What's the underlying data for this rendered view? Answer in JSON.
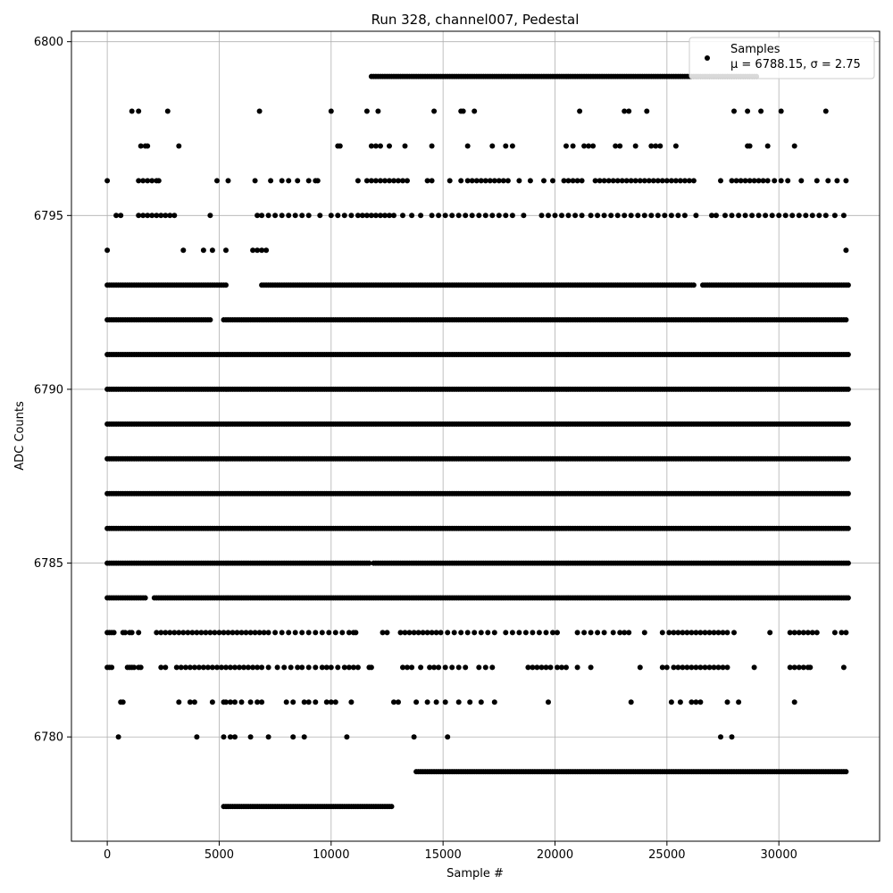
{
  "chart_data": {
    "type": "scatter",
    "title": "Run 328, channel007, Pedestal",
    "xlabel": "Sample #",
    "ylabel": "ADC Counts",
    "xlim": [
      -1600,
      34500
    ],
    "ylim": [
      6777,
      6800.3
    ],
    "xticks": [
      0,
      5000,
      10000,
      15000,
      20000,
      25000,
      30000
    ],
    "yticks": [
      6780,
      6785,
      6790,
      6795,
      6800
    ],
    "grid": true,
    "legend_position": "top-right",
    "series": [
      {
        "name": "Samples",
        "color": "#000000",
        "marker": "dot",
        "legend_label": "μ = 6788.15, σ = 2.75",
        "bands": [
          {
            "y": 6778,
            "x": [
              5200,
              12700
            ]
          },
          {
            "y": 6779,
            "x": [
              13800,
              33000
            ]
          },
          {
            "y": 6780,
            "x": [
              500,
              4000,
              5200,
              5500,
              5700,
              6400,
              7200,
              8300,
              8800,
              10700,
              13700,
              15200,
              27400,
              27900
            ]
          },
          {
            "y": 6781,
            "x": [
              600,
              700,
              3200,
              3700,
              3900,
              4700,
              5200,
              5300,
              5500,
              5700,
              6000,
              6400,
              6700,
              6900,
              8000,
              8300,
              8800,
              9000,
              9300,
              9800,
              10000,
              10200,
              10900,
              12800,
              13000,
              13800,
              14300,
              14700,
              15100,
              15700,
              16200,
              16700,
              17300,
              19700,
              23400,
              25200,
              25600,
              26100,
              26300,
              26500,
              27700,
              28200,
              30700
            ]
          },
          {
            "y": 6782,
            "x": [
              0,
              100,
              200,
              900,
              1000,
              1100,
              1200,
              1400,
              1500,
              2400,
              2600,
              3100,
              3300,
              3500,
              3700,
              3900,
              4100,
              4300,
              4500,
              4700,
              4900,
              5100,
              5300,
              5500,
              5700,
              5900,
              6100,
              6300,
              6500,
              6700,
              6900,
              7200,
              7600,
              7900,
              8200,
              8500,
              8700,
              9000,
              9300,
              9600,
              9800,
              10000,
              10300,
              10600,
              10800,
              11000,
              11200,
              11700,
              11800,
              13200,
              13400,
              13600,
              14000,
              14400,
              14600,
              14800,
              15100,
              15400,
              15700,
              16000,
              16600,
              16900,
              17200,
              18800,
              19000,
              19200,
              19400,
              19600,
              19800,
              20100,
              20300,
              20500,
              21000,
              21600,
              23800,
              24800,
              25000,
              25300,
              25500,
              25700,
              25900,
              26100,
              26300,
              26500,
              26700,
              26900,
              27100,
              27300,
              27500,
              27700,
              28900,
              30500,
              30700,
              30900,
              31100,
              31300,
              31400,
              32900
            ]
          },
          {
            "y": 6783,
            "x": [
              0,
              100,
              200,
              300,
              700,
              800,
              1000,
              1100,
              1400,
              2200,
              2400,
              2600,
              2800,
              3000,
              3200,
              3400,
              3600,
              3800,
              4000,
              4200,
              4400,
              4600,
              4800,
              5000,
              5200,
              5400,
              5600,
              5800,
              6000,
              6200,
              6400,
              6600,
              6800,
              7000,
              7200,
              7500,
              7800,
              8100,
              8400,
              8700,
              9000,
              9300,
              9600,
              9900,
              10200,
              10500,
              10800,
              11000,
              11100,
              12300,
              12500,
              13100,
              13300,
              13500,
              13700,
              13900,
              14100,
              14300,
              14500,
              14700,
              14900,
              15200,
              15500,
              15800,
              16100,
              16400,
              16700,
              17000,
              17300,
              17800,
              18100,
              18400,
              18700,
              19000,
              19300,
              19600,
              19900,
              20100,
              21000,
              21300,
              21600,
              21900,
              22200,
              22600,
              22900,
              23100,
              23300,
              24000,
              24800,
              25100,
              25300,
              25500,
              25700,
              25900,
              26100,
              26300,
              26500,
              26700,
              26900,
              27100,
              27300,
              27500,
              27700,
              28000,
              29600,
              30500,
              30700,
              30900,
              31100,
              31300,
              31500,
              31700,
              32500,
              32800,
              33000
            ]
          },
          {
            "y": 6784,
            "x": [
              0,
              1700,
              2100,
              33100
            ]
          },
          {
            "y": 6785,
            "x": [
              0,
              11700,
              11900,
              33100
            ]
          },
          {
            "y": 6786,
            "x": [
              0,
              33100
            ]
          },
          {
            "y": 6787,
            "x": [
              0,
              33100
            ]
          },
          {
            "y": 6788,
            "x": [
              0,
              33100
            ]
          },
          {
            "y": 6789,
            "x": [
              0,
              33100
            ]
          },
          {
            "y": 6790,
            "x": [
              0,
              33100
            ]
          },
          {
            "y": 6791,
            "x": [
              0,
              33100
            ]
          },
          {
            "y": 6792,
            "x": [
              0,
              4600,
              5200,
              33000
            ]
          },
          {
            "y": 6793,
            "x": [
              0,
              5300,
              6900,
              26200,
              26600,
              33100
            ]
          },
          {
            "y": 6794,
            "x": [
              0,
              3400,
              4300,
              4700,
              5300,
              6500,
              6700,
              6900,
              7100,
              33000
            ]
          },
          {
            "y": 6795,
            "x": [
              400,
              600,
              1400,
              1600,
              1800,
              2000,
              2200,
              2400,
              2600,
              2800,
              3000,
              4600,
              6700,
              6900,
              7200,
              7500,
              7800,
              8100,
              8400,
              8700,
              9000,
              9500,
              10000,
              10300,
              10600,
              10900,
              11200,
              11400,
              11600,
              11800,
              12000,
              12200,
              12400,
              12600,
              12800,
              13200,
              13600,
              14000,
              14500,
              14800,
              15100,
              15400,
              15700,
              16000,
              16300,
              16600,
              16900,
              17200,
              17500,
              17800,
              18100,
              18600,
              19400,
              19700,
              20000,
              20300,
              20600,
              20900,
              21200,
              21600,
              21900,
              22200,
              22500,
              22800,
              23100,
              23400,
              23700,
              24000,
              24300,
              24600,
              24900,
              25200,
              25500,
              25800,
              26300,
              27000,
              27200,
              27600,
              27900,
              28200,
              28500,
              28800,
              29100,
              29400,
              29700,
              30000,
              30300,
              30600,
              30900,
              31200,
              31500,
              31800,
              32100,
              32500,
              32900
            ]
          },
          {
            "y": 6796,
            "x": [
              0,
              1400,
              1600,
              1800,
              2000,
              2200,
              2300,
              4900,
              5400,
              6600,
              7300,
              7800,
              8100,
              8500,
              9000,
              9300,
              9400,
              11200,
              11600,
              11800,
              12000,
              12200,
              12400,
              12600,
              12800,
              13000,
              13200,
              13400,
              14300,
              14500,
              15300,
              15800,
              16100,
              16300,
              16500,
              16700,
              16900,
              17100,
              17300,
              17500,
              17700,
              17900,
              18400,
              18900,
              19500,
              19900,
              20400,
              20600,
              20800,
              21000,
              21200,
              21800,
              22000,
              22200,
              22400,
              22600,
              22800,
              23000,
              23200,
              23400,
              23600,
              23800,
              24000,
              24200,
              24400,
              24600,
              24800,
              25000,
              25200,
              25400,
              25600,
              25800,
              26000,
              26200,
              27400,
              27900,
              28100,
              28300,
              28500,
              28700,
              28900,
              29100,
              29300,
              29500,
              29800,
              30100,
              30400,
              31000,
              31700,
              32200,
              32600,
              33000
            ]
          },
          {
            "y": 6797,
            "x": [
              1500,
              1700,
              1800,
              3200,
              10300,
              10400,
              11800,
              12000,
              12200,
              12600,
              13300,
              14500,
              16100,
              17200,
              17800,
              18100,
              20500,
              20800,
              21300,
              21500,
              21700,
              22700,
              22900,
              23600,
              24300,
              24500,
              24700,
              25400,
              28600,
              28700,
              29500,
              30700
            ]
          },
          {
            "y": 6798,
            "x": [
              1100,
              1400,
              2700,
              6800,
              10000,
              11600,
              12100,
              14600,
              15800,
              15900,
              16400,
              21100,
              23100,
              23300,
              24100,
              28000,
              28600,
              29200,
              30100,
              32100
            ]
          },
          {
            "y": 6799,
            "x": [
              11800,
              29000
            ]
          }
        ]
      }
    ]
  }
}
